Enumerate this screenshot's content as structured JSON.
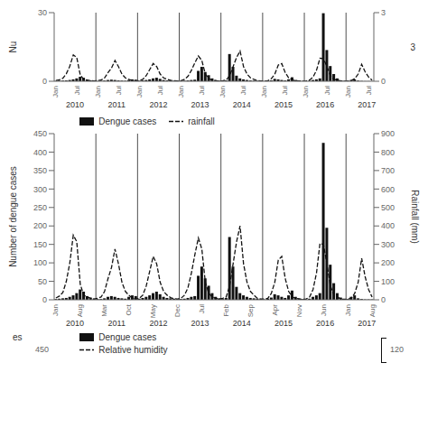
{
  "chart_data": [
    {
      "type": "bar",
      "ylabel": "Nu",
      "y2label": "3",
      "grid": false,
      "categories": [
        "Jan",
        null,
        null,
        null,
        null,
        null,
        "Jul",
        null,
        null,
        null,
        null,
        null,
        "Jan",
        null,
        null,
        null,
        null,
        null,
        "Jul",
        null,
        null,
        null,
        null,
        null,
        "Jan",
        null,
        null,
        null,
        null,
        null,
        "Jul",
        null,
        null,
        null,
        null,
        null,
        "Jan",
        null,
        null,
        null,
        null,
        null,
        "Jul",
        null,
        null,
        null,
        null,
        null,
        "Jan",
        null,
        null,
        null,
        null,
        null,
        "Jul",
        null,
        null,
        null,
        null,
        null,
        "Jan",
        null,
        null,
        null,
        null,
        null,
        "Jul",
        null,
        null,
        null,
        null,
        null,
        "Jan",
        null,
        null,
        null,
        null,
        null,
        "Jul",
        null,
        null,
        null,
        null,
        null,
        "Jan",
        null,
        null,
        null,
        null,
        null,
        "Jul",
        null
      ],
      "annotations": [
        "2010",
        "2011",
        "2012",
        "2013",
        "2014",
        "2015",
        "2016",
        "2017"
      ],
      "ylim": [
        0,
        30
      ],
      "yticks": [
        0,
        30
      ],
      "y2lim": [
        0,
        3
      ],
      "y2ticks": [
        0,
        3
      ],
      "series": [
        {
          "type": "bar",
          "color": "#111111",
          "values": [
            0.14,
            0.21,
            0.28,
            0.35,
            0.56,
            0.84,
            1.26,
            1.96,
            1.54,
            0.7,
            0.42,
            0.21,
            0.14,
            0.14,
            0.28,
            0.56,
            0.7,
            0.56,
            0.35,
            0.28,
            0.21,
            0.56,
            0.84,
            0.7,
            0.21,
            0.35,
            0.56,
            0.84,
            1.26,
            1.54,
            1.05,
            0.56,
            0.35,
            0.28,
            0.21,
            0.14,
            0.14,
            0.21,
            0.35,
            0.56,
            0.7,
            4.55,
            6.3,
            4.06,
            2.66,
            1.26,
            0.56,
            0.28,
            0.14,
            0.35,
            11.9,
            6.3,
            2.45,
            1.26,
            0.84,
            0.56,
            0.35,
            0.28,
            0.21,
            0.14,
            0.07,
            0.21,
            0.42,
            1.05,
            0.84,
            0.56,
            0.35,
            0.84,
            1.75,
            0.56,
            0.28,
            0.14,
            0.07,
            0.21,
            0.56,
            0.84,
            1.26,
            29.75,
            13.65,
            6.65,
            3.15,
            1.26,
            0.42,
            0.21,
            0.14,
            0.56,
            0.84,
            0.28,
            0.14,
            0.07,
            0.07,
            0.07
          ]
        },
        {
          "type": "line",
          "axis": "y2",
          "color": "#111111",
          "line_style": "dashed",
          "values": [
            0.033,
            0.066,
            0.132,
            0.33,
            0.66,
            1.155,
            1.0395,
            0.2805,
            0.0825,
            0.0495,
            0.0264,
            0.0132,
            0.0264,
            0.0495,
            0.1485,
            0.3795,
            0.5775,
            0.9075,
            0.6435,
            0.3135,
            0.1485,
            0.0825,
            0.0264,
            0.0132,
            0.0264,
            0.0825,
            0.2475,
            0.5115,
            0.7755,
            0.6435,
            0.3135,
            0.1485,
            0.0825,
            0.0396,
            0.0198,
            0.0132,
            0.0264,
            0.0825,
            0.2145,
            0.4785,
            0.8085,
            1.1055,
            0.9075,
            0.3135,
            0.1155,
            0.0495,
            0.0264,
            0.0132,
            0.0264,
            0.0495,
            0.2475,
            0.6435,
            1.0395,
            1.32,
            0.6435,
            0.3135,
            0.1485,
            0.0825,
            0.0264,
            0.0132,
            0.0132,
            0.0264,
            0.1155,
            0.3135,
            0.7095,
            0.7755,
            0.3795,
            0.1485,
            0.0495,
            0.0264,
            0.0132,
            0.0066,
            0.0132,
            0.0495,
            0.1815,
            0.4785,
            1.0065,
            0.99,
            0.6435,
            0.2475,
            0.0825,
            0.0495,
            0.0132,
            0.0066,
            0.0132,
            0.0264,
            0.1155,
            0.3135,
            0.7425,
            0.4125,
            0.1815,
            0.0495
          ]
        }
      ]
    },
    {
      "type": "bar",
      "ylabel": "Number of dengue cases",
      "y2label": "Rainfall (mm)",
      "grid": false,
      "legend": "upper left",
      "categories": [
        "Jan",
        null,
        null,
        null,
        null,
        null,
        null,
        "Aug",
        null,
        null,
        null,
        null,
        null,
        null,
        "Mar",
        null,
        null,
        null,
        null,
        null,
        null,
        "Oct",
        null,
        null,
        null,
        null,
        null,
        null,
        "May",
        null,
        null,
        null,
        null,
        null,
        null,
        "Dec",
        null,
        null,
        null,
        null,
        null,
        null,
        "Jul",
        null,
        null,
        null,
        null,
        null,
        null,
        "Feb",
        null,
        null,
        null,
        null,
        null,
        null,
        "Sep",
        null,
        null,
        null,
        null,
        null,
        null,
        "Apr",
        null,
        null,
        null,
        null,
        null,
        null,
        "Nov",
        null,
        null,
        null,
        null,
        null,
        null,
        "Jun",
        null,
        null,
        null,
        null,
        null,
        null,
        "Jan",
        null,
        null,
        null,
        null,
        null,
        null,
        "Aug"
      ],
      "annotations": [
        "2010",
        "2011",
        "2012",
        "2013",
        "2014",
        "2015",
        "2016",
        "2017"
      ],
      "ylim": [
        0,
        450
      ],
      "yticks": [
        0,
        50,
        100,
        150,
        200,
        250,
        300,
        350,
        400,
        450
      ],
      "y2lim": [
        0,
        900
      ],
      "y2ticks": [
        0,
        100,
        200,
        300,
        400,
        500,
        600,
        700,
        800,
        900
      ],
      "series": [
        {
          "name": "Dengue cases",
          "type": "bar",
          "color": "#111111",
          "values": [
            2,
            3,
            4,
            5,
            8,
            12,
            18,
            28,
            22,
            10,
            6,
            3,
            2,
            2,
            4,
            8,
            10,
            8,
            5,
            4,
            3,
            8,
            12,
            10,
            3,
            5,
            8,
            12,
            18,
            22,
            15,
            8,
            5,
            4,
            3,
            2,
            2,
            3,
            5,
            8,
            10,
            65,
            90,
            58,
            38,
            18,
            8,
            4,
            2,
            5,
            170,
            90,
            35,
            18,
            12,
            8,
            5,
            4,
            3,
            2,
            1,
            3,
            6,
            15,
            12,
            8,
            5,
            12,
            25,
            8,
            4,
            2,
            1,
            3,
            8,
            12,
            18,
            425,
            195,
            95,
            45,
            18,
            6,
            3,
            2,
            8,
            12,
            4,
            2,
            1,
            1,
            1
          ]
        },
        {
          "name": "rainfall",
          "type": "line",
          "axis": "y2",
          "color": "#111111",
          "line_style": "dashed",
          "values": [
            10,
            20,
            40,
            100,
            200,
            350,
            315,
            85,
            25,
            15,
            8,
            4,
            8,
            15,
            45,
            115,
            175,
            275,
            195,
            95,
            45,
            25,
            8,
            4,
            8,
            25,
            75,
            155,
            235,
            195,
            95,
            45,
            25,
            12,
            6,
            4,
            8,
            25,
            65,
            145,
            245,
            335,
            275,
            95,
            35,
            15,
            8,
            4,
            8,
            15,
            75,
            195,
            315,
            400,
            195,
            95,
            45,
            25,
            8,
            4,
            4,
            8,
            35,
            95,
            215,
            235,
            115,
            45,
            15,
            8,
            4,
            2,
            4,
            15,
            55,
            145,
            305,
            300,
            195,
            75,
            25,
            15,
            4,
            2,
            4,
            8,
            35,
            95,
            225,
            125,
            55,
            15
          ]
        }
      ]
    },
    {
      "type": "text",
      "annotations": [
        "es",
        "450",
        "120"
      ],
      "legend": "upper left",
      "series": [
        {
          "name": "Dengue cases",
          "type": "bar",
          "color": "#111111"
        },
        {
          "name": "Relative humidity",
          "type": "line",
          "color": "#111111",
          "line_style": "dashed"
        }
      ]
    }
  ]
}
